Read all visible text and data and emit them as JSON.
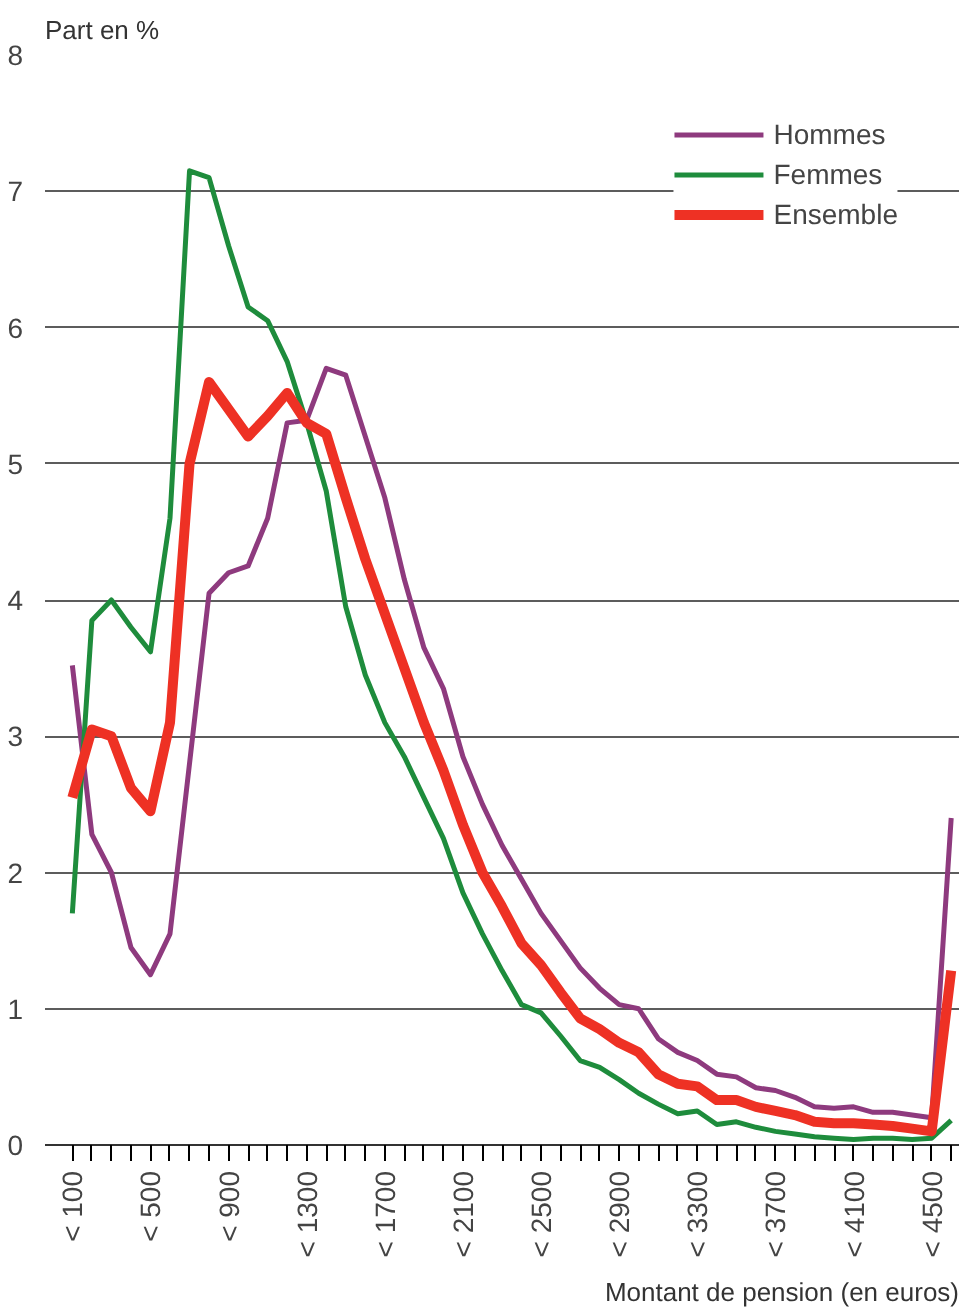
{
  "chart_data": {
    "type": "line",
    "ylabel": "Part en %",
    "xlabel": "Montant de pension (en euros)",
    "categories": [
      "< 100",
      null,
      null,
      null,
      "< 500",
      null,
      null,
      null,
      "< 900",
      null,
      null,
      null,
      "< 1300",
      null,
      null,
      null,
      "< 1700",
      null,
      null,
      null,
      "< 2100",
      null,
      null,
      null,
      "< 2500",
      null,
      null,
      null,
      "< 2900",
      null,
      null,
      null,
      "< 3300",
      null,
      null,
      null,
      "< 3700",
      null,
      null,
      null,
      "< 4100",
      null,
      null,
      null,
      "< 4500",
      null
    ],
    "ylim": [
      0,
      8
    ],
    "yticks": [
      0,
      1,
      2,
      3,
      4,
      5,
      6,
      7,
      8
    ],
    "grid": "y",
    "legend": "top right",
    "marker": "none",
    "series": [
      {
        "name": "Hommes",
        "color": "#8e3a7e",
        "values": [
          3.52,
          2.28,
          2.0,
          1.45,
          1.25,
          1.55,
          2.8,
          4.05,
          4.2,
          4.25,
          4.6,
          5.3,
          5.32,
          5.7,
          5.65,
          5.2,
          4.75,
          4.15,
          3.65,
          3.35,
          2.85,
          2.5,
          2.2,
          1.95,
          1.7,
          1.5,
          1.3,
          1.15,
          1.03,
          1.0,
          0.78,
          0.68,
          0.62,
          0.52,
          0.5,
          0.42,
          0.4,
          0.35,
          0.28,
          0.27,
          0.28,
          0.24,
          0.24,
          0.22,
          0.2,
          2.4
        ]
      },
      {
        "name": "Femmes",
        "color": "#1e8c3c",
        "values": [
          1.7,
          3.85,
          4.0,
          3.8,
          3.62,
          4.6,
          7.15,
          7.1,
          6.6,
          6.15,
          6.05,
          5.75,
          5.3,
          4.8,
          3.95,
          3.45,
          3.1,
          2.85,
          2.55,
          2.25,
          1.85,
          1.55,
          1.28,
          1.03,
          0.97,
          0.8,
          0.62,
          0.57,
          0.48,
          0.38,
          0.3,
          0.23,
          0.25,
          0.15,
          0.17,
          0.13,
          0.1,
          0.08,
          0.06,
          0.05,
          0.04,
          0.05,
          0.05,
          0.04,
          0.05,
          0.18
        ]
      },
      {
        "name": "Ensemble",
        "color": "#ee3124",
        "values": [
          2.55,
          3.05,
          3.0,
          2.62,
          2.45,
          3.1,
          5.0,
          5.6,
          5.4,
          5.2,
          5.35,
          5.52,
          5.3,
          5.22,
          4.75,
          4.3,
          3.9,
          3.5,
          3.1,
          2.75,
          2.35,
          2.0,
          1.75,
          1.48,
          1.32,
          1.12,
          0.93,
          0.85,
          0.75,
          0.68,
          0.52,
          0.45,
          0.43,
          0.33,
          0.33,
          0.28,
          0.25,
          0.22,
          0.17,
          0.16,
          0.16,
          0.15,
          0.14,
          0.12,
          0.1,
          1.28
        ]
      }
    ]
  }
}
